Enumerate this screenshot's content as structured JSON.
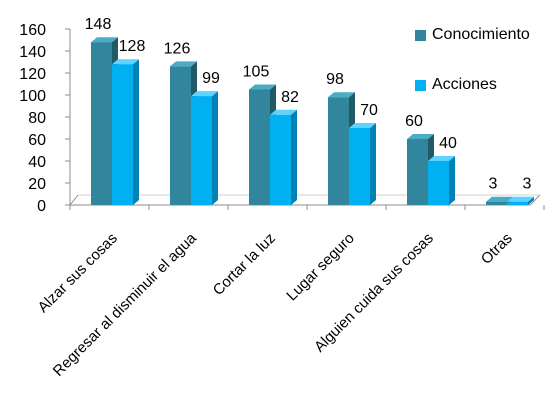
{
  "chart_data": {
    "type": "bar",
    "style": "3d-clustered",
    "categories": [
      "Alzar sus cosas",
      "Regresar al disminuir el agua",
      "Cortar la luz",
      "Lugar seguro",
      "Alguien cuida sus cosas",
      "Otras"
    ],
    "series": [
      {
        "name": "Conocimiento",
        "values": [
          148,
          126,
          105,
          98,
          60,
          3
        ]
      },
      {
        "name": "Acciones",
        "values": [
          128,
          99,
          82,
          70,
          40,
          3
        ]
      }
    ],
    "data_labels": true,
    "title": "",
    "xlabel": "",
    "ylabel": "",
    "ylim": [
      0,
      160
    ],
    "yticks": [
      "0",
      "20",
      "40",
      "60",
      "80",
      "100",
      "120",
      "140",
      "160"
    ],
    "grid": false,
    "legend_position": "right"
  },
  "colors": {
    "conocimiento": "#31859C",
    "conocimiento_top": "#4BACC6",
    "conocimiento_side": "#215968",
    "acciones": "#00B0F0",
    "acciones_top": "#5FD3FF",
    "acciones_side": "#0082B4",
    "axis": "#8C8C8C",
    "text": "#000000"
  }
}
